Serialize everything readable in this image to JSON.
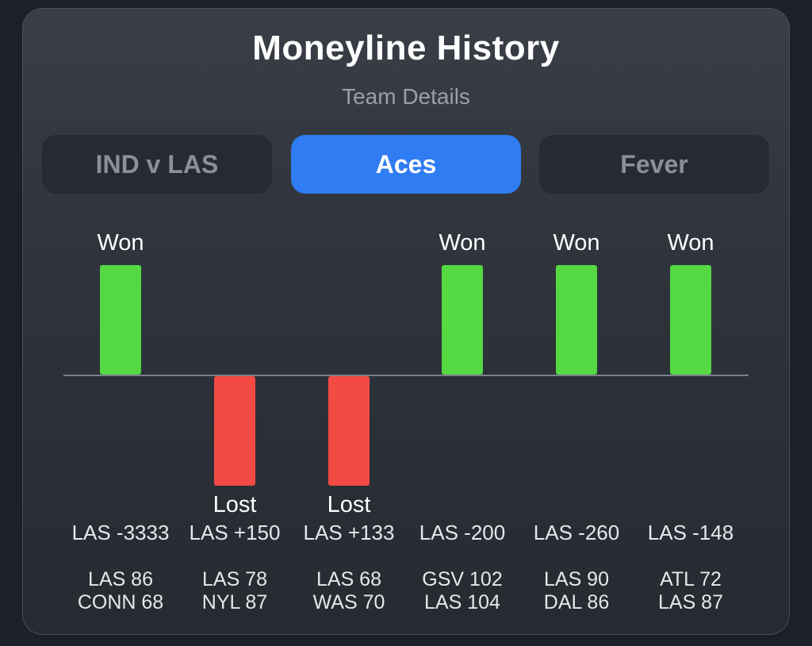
{
  "header": {
    "title": "Moneyline History",
    "subtitle": "Team Details"
  },
  "tabs": [
    {
      "label": "IND v LAS",
      "active": false
    },
    {
      "label": "Aces",
      "active": true
    },
    {
      "label": "Fever",
      "active": false
    }
  ],
  "colors": {
    "won": "#54d943",
    "lost": "#f44a44",
    "active_tab": "#2f7cf3"
  },
  "chart_data": {
    "type": "bar",
    "categories": [
      "LAS -3333",
      "LAS +150",
      "LAS +133",
      "LAS -200",
      "LAS -260",
      "LAS -148"
    ],
    "values": [
      1,
      -1,
      -1,
      1,
      1,
      1
    ],
    "ylim": [
      -1,
      1
    ],
    "games": [
      {
        "result": "Won",
        "odds": "LAS -3333",
        "score_line1": "LAS 86",
        "score_line2": "CONN 68"
      },
      {
        "result": "Lost",
        "odds": "LAS +150",
        "score_line1": "LAS 78",
        "score_line2": "NYL 87"
      },
      {
        "result": "Lost",
        "odds": "LAS +133",
        "score_line1": "LAS 68",
        "score_line2": "WAS 70"
      },
      {
        "result": "Won",
        "odds": "LAS -200",
        "score_line1": "GSV 102",
        "score_line2": "LAS 104"
      },
      {
        "result": "Won",
        "odds": "LAS -260",
        "score_line1": "LAS 90",
        "score_line2": "DAL 86"
      },
      {
        "result": "Won",
        "odds": "LAS -148",
        "score_line1": "ATL 72",
        "score_line2": "LAS 87"
      }
    ]
  }
}
